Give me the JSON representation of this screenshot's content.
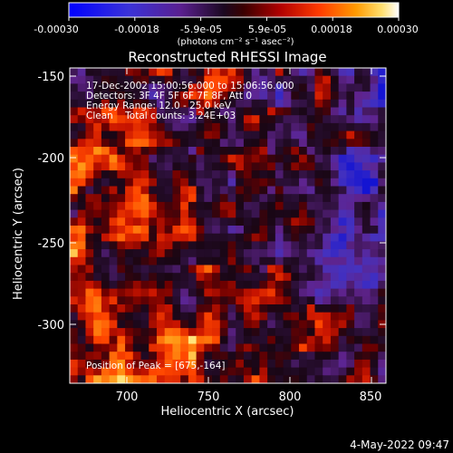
{
  "colorbar": {
    "ticks": [
      "-0.00030",
      "-0.00018",
      "-5.9e-05",
      "5.9e-05",
      "0.00018",
      "0.00030"
    ],
    "unit_label": "(photons cm⁻² s⁻¹ asec⁻²)"
  },
  "title": "Reconstructed RHESSI Image",
  "annotations": {
    "time_range": "17-Dec-2002 15:00:56.000 to 15:06:56.000",
    "detectors": "Detectors: 3F 4F 5F 6F 7F 8F, Att 0",
    "energy_range": "Energy Range: 12.0 - 25.0 keV",
    "method_counts": "Clean    Total counts: 3.24E+03",
    "peak_position": "Position of Peak = [675,-164]"
  },
  "axes": {
    "xlabel": "Heliocentric X (arcsec)",
    "ylabel": "Heliocentric Y (arcsec)",
    "x_ticks": [
      "700",
      "750",
      "800",
      "850"
    ],
    "y_ticks": [
      "-150",
      "-200",
      "-250",
      "-300"
    ]
  },
  "footer": {
    "timestamp": "4-May-2022 09:47"
  },
  "colors": {
    "background": "#000000",
    "foreground": "#ffffff",
    "colormap": [
      "#0000ff",
      "#6a1bc8",
      "#3b1f4f",
      "#8b0000",
      "#ff2a00",
      "#ff8a00",
      "#ffd84a",
      "#ffffff"
    ]
  }
}
